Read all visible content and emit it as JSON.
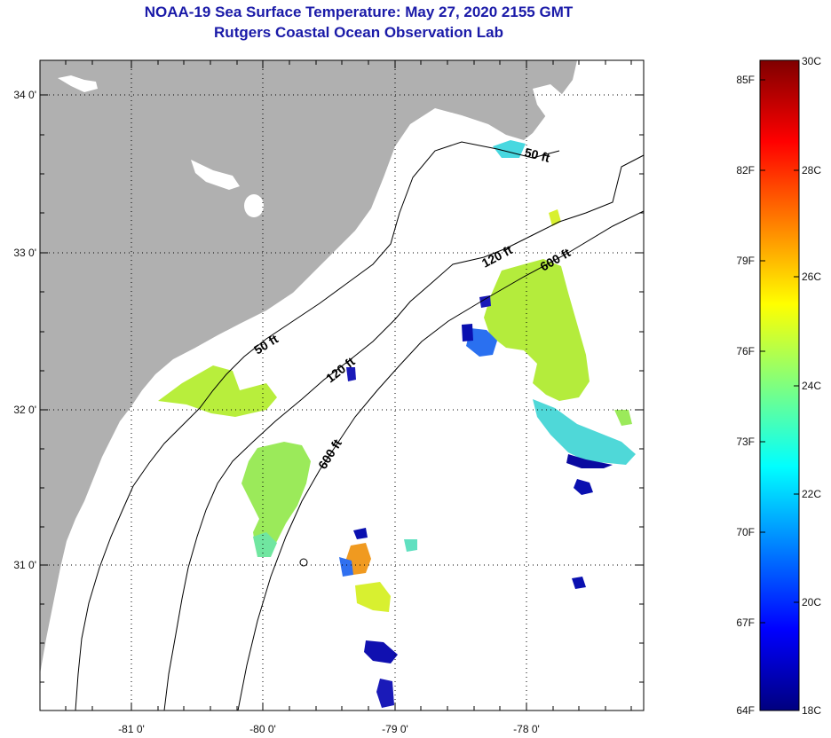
{
  "header": {
    "title": "NOAA-19 Sea Surface Temperature:  May 27, 2020 2155 GMT",
    "subtitle": "Rutgers Coastal Ocean Observation Lab"
  },
  "map": {
    "lon_ticks": [
      "-81 0'",
      "-80 0'",
      "-79 0'",
      "-78 0'"
    ],
    "lat_ticks": [
      "34 0'",
      "33 0'",
      "32 0'",
      "31 0'"
    ],
    "contour_labels": [
      "50 ft",
      "120 ft",
      "600 ft",
      "50 ft",
      "120 ft",
      "600 ft"
    ],
    "colors": {
      "land": "#b0b0b0",
      "ocean": "#ffffff"
    }
  },
  "colorbar": {
    "fahrenheit_labels": [
      "85F",
      "82F",
      "79F",
      "76F",
      "73F",
      "70F",
      "67F",
      "64F"
    ],
    "celsius_labels": [
      "30C",
      "28C",
      "26C",
      "24C",
      "22C",
      "20C",
      "18C"
    ],
    "gradient": [
      "#00007f",
      "#0000ff",
      "#007fff",
      "#00ffff",
      "#7fff7f",
      "#ffff00",
      "#ff7f00",
      "#ff0000",
      "#7f0000"
    ]
  }
}
